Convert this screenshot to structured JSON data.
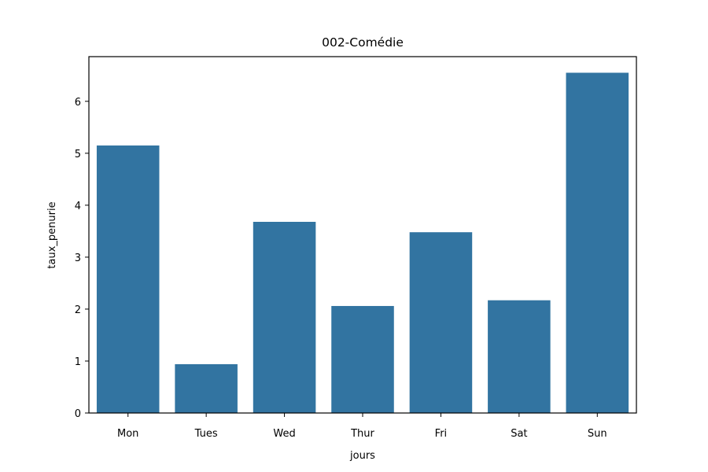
{
  "chart_data": {
    "type": "bar",
    "title": "002-Comédie",
    "xlabel": "jours",
    "ylabel": "taux_penurie",
    "categories": [
      "Mon",
      "Tues",
      "Wed",
      "Thur",
      "Fri",
      "Sat",
      "Sun"
    ],
    "values": [
      5.15,
      0.94,
      3.68,
      2.06,
      3.48,
      2.17,
      6.55
    ],
    "ylim": [
      0,
      6.86
    ],
    "yticks": [
      0,
      1,
      2,
      3,
      4,
      5,
      6
    ],
    "grid": false,
    "legend": "none",
    "colors": {
      "bar": "#3274a1",
      "axis": "#000000"
    }
  }
}
